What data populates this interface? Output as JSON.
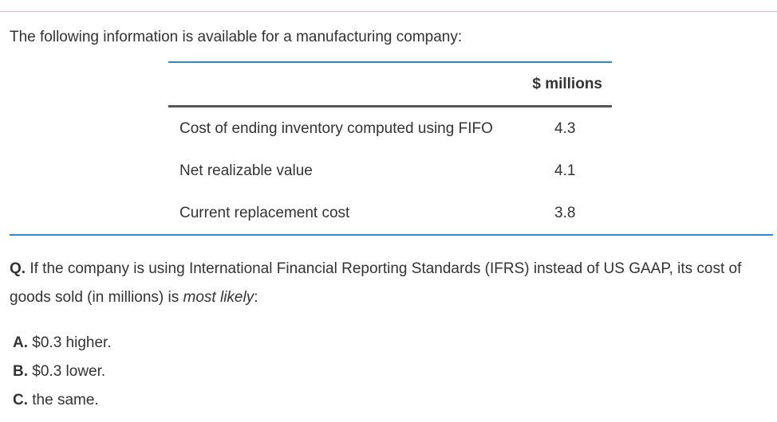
{
  "intro": "The following information is available for a manufacturing company:",
  "table": {
    "column_header": "$ millions",
    "rows": [
      {
        "label": "Cost of ending inventory computed using FIFO",
        "value": "4.3"
      },
      {
        "label": "Net realizable value",
        "value": "4.1"
      },
      {
        "label": "Current replacement cost",
        "value": "3.8"
      }
    ]
  },
  "question": {
    "prefix": "Q.",
    "text_before": " If the company is using International Financial Reporting Standards (IFRS) instead of US GAAP, its cost of goods sold (in millions) is ",
    "emphasis": "most likely",
    "text_after": ":"
  },
  "choices": [
    {
      "letter": "A.",
      "text": " $0.3 higher."
    },
    {
      "letter": "B.",
      "text": " $0.3 lower."
    },
    {
      "letter": "C.",
      "text": " the same."
    }
  ],
  "colors": {
    "accent_rule": "#2b8ac9",
    "header_rule": "#555555",
    "text": "#333333"
  }
}
